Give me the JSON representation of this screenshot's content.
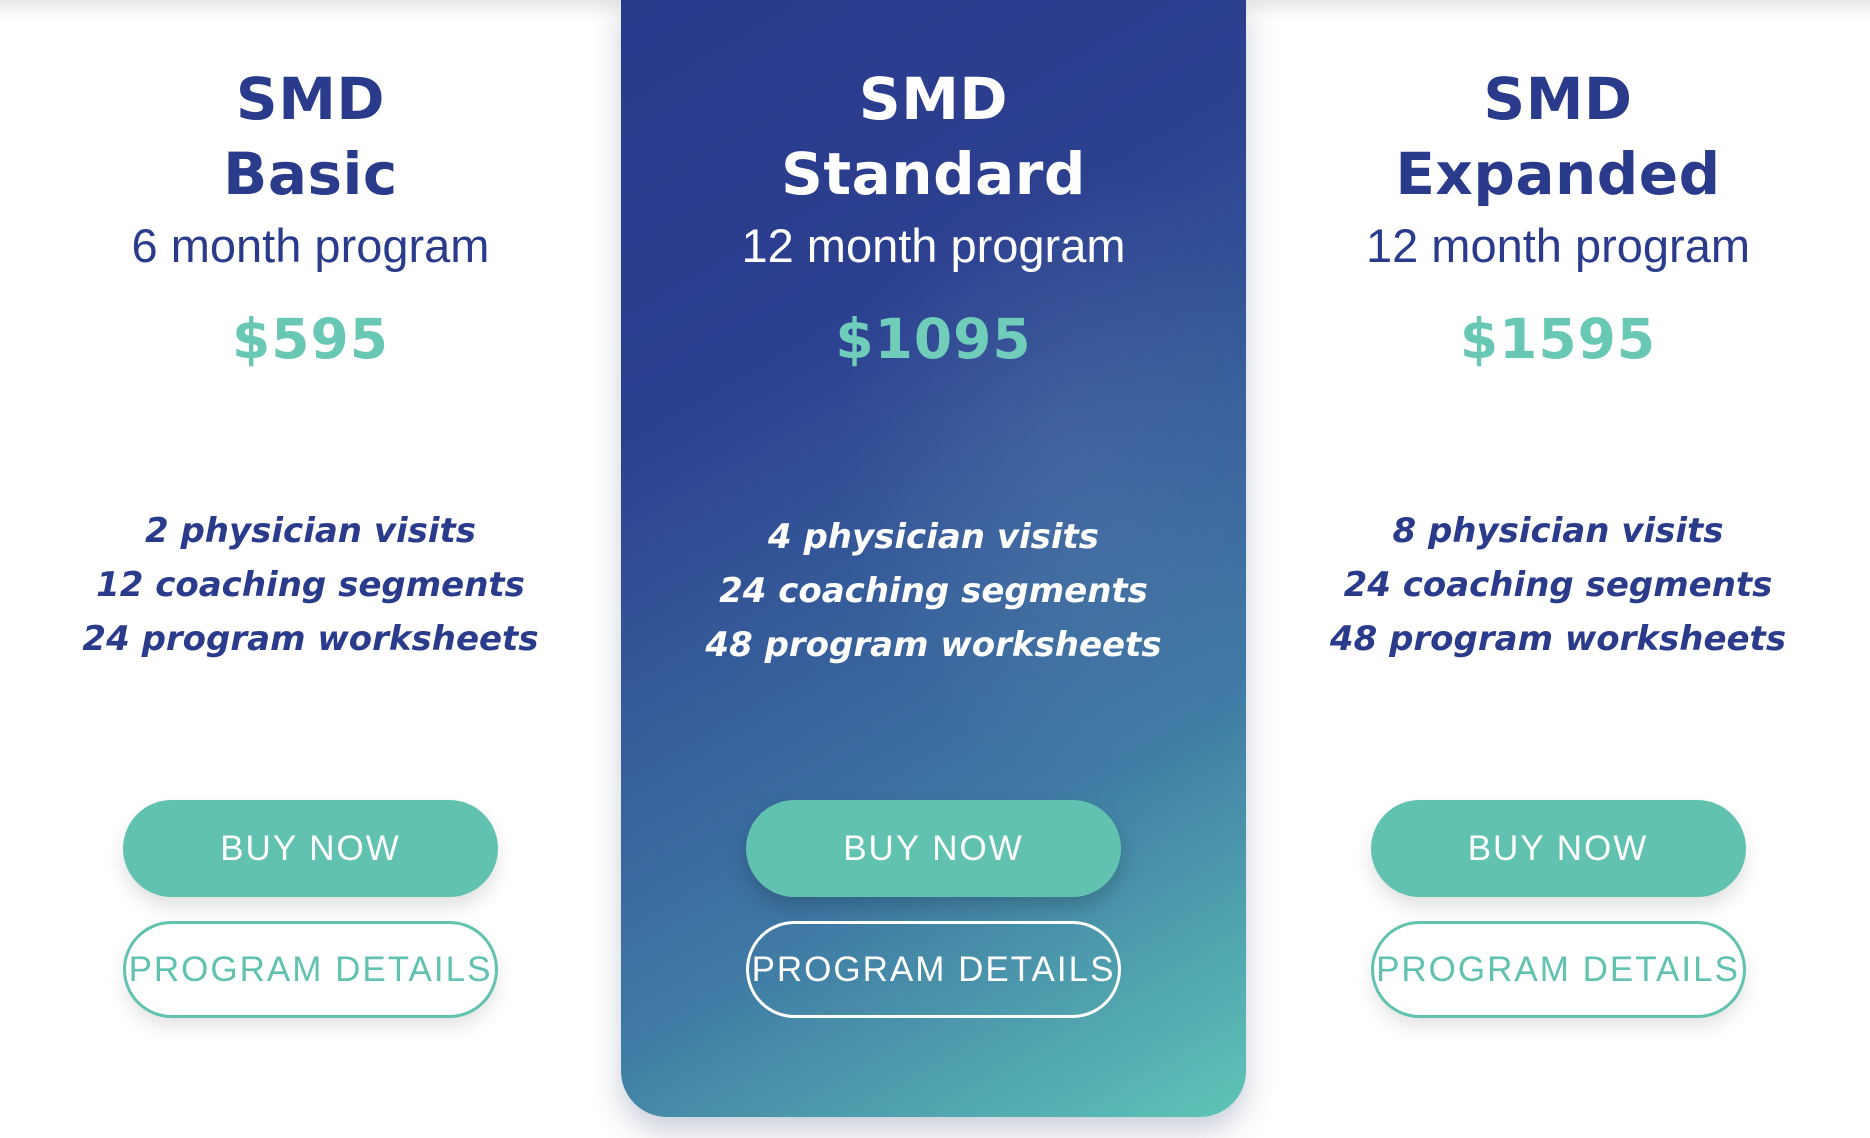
{
  "colors": {
    "navy_text": "#2b3b8c",
    "teal_button": "#62c2b0",
    "teal_price": "#68c8b4",
    "card_gradient_top": "#293a8b",
    "card_gradient_bottom": "#5ec5b7",
    "page_background": "#ffffff"
  },
  "plans": [
    {
      "id": "basic",
      "name_line1": "SMD",
      "name_line2": "Basic",
      "duration": "6 month program",
      "price": "$595",
      "features": [
        "2 physician visits",
        "12 coaching segments",
        "24 program worksheets"
      ],
      "buy_label": "BUY NOW",
      "details_label": "PROGRAM DETAILS",
      "highlighted": false
    },
    {
      "id": "standard",
      "name_line1": "SMD",
      "name_line2": "Standard",
      "duration": "12 month program",
      "price": "$1095",
      "features": [
        "4 physician visits",
        "24 coaching segments",
        "48 program worksheets"
      ],
      "buy_label": "BUY NOW",
      "details_label": "PROGRAM DETAILS",
      "highlighted": true
    },
    {
      "id": "expanded",
      "name_line1": "SMD",
      "name_line2": "Expanded",
      "duration": "12 month program",
      "price": "$1595",
      "features": [
        "8 physician visits",
        "24 coaching segments",
        "48 program worksheets"
      ],
      "buy_label": "BUY NOW",
      "details_label": "PROGRAM DETAILS",
      "highlighted": false
    }
  ]
}
